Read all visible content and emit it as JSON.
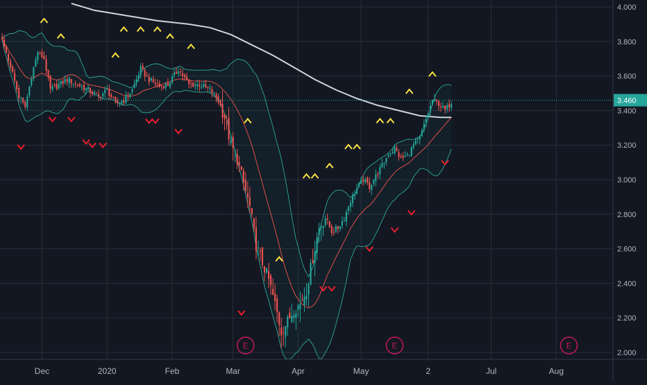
{
  "colors": {
    "background": "#131722",
    "grid": "#2a2e39",
    "axis_text": "#b2b5be",
    "candle_up": "#26a69a",
    "candle_down": "#ef5350",
    "ma20": "#e0504a",
    "bollinger": "#2a9d8f",
    "bollinger_fill": "rgba(38,166,154,0.06)",
    "ma200": "#d1d4dc",
    "signal_up": "#f7e142",
    "signal_down": "#e91e2b",
    "earnings": "#c2185b",
    "price_label_bg": "#26a69a",
    "price_line": "#26a69a"
  },
  "chart_data": {
    "type": "candlestick",
    "x_ticks": [
      {
        "label": "Dec",
        "day": 15
      },
      {
        "label": "2020",
        "day": 46
      },
      {
        "label": "Feb",
        "day": 77
      },
      {
        "label": "Mar",
        "day": 106
      },
      {
        "label": "Apr",
        "day": 137
      },
      {
        "label": "May",
        "day": 167
      },
      {
        "label": "2",
        "day": 199
      },
      {
        "label": "Jul",
        "day": 229
      },
      {
        "label": "Aug",
        "day": 260
      }
    ],
    "y_ticks": [
      "4.000",
      "3.800",
      "3.600",
      "3.400",
      "3.200",
      "3.000",
      "2.800",
      "2.600",
      "2.400",
      "2.200",
      "2.000"
    ],
    "ylim": [
      1.96,
      4.04
    ],
    "x_range_days": [
      -5,
      287
    ],
    "last_price": "3.460",
    "last_price_value": 3.46,
    "earnings_label": "E",
    "earnings_days": [
      112,
      183,
      266
    ],
    "anchors": [
      {
        "d": -4,
        "p": 3.8
      },
      {
        "d": 0,
        "p": 3.66
      },
      {
        "d": 4,
        "p": 3.48
      },
      {
        "d": 7,
        "p": 3.42
      },
      {
        "d": 10,
        "p": 3.6
      },
      {
        "d": 13,
        "p": 3.74
      },
      {
        "d": 16,
        "p": 3.7
      },
      {
        "d": 19,
        "p": 3.52
      },
      {
        "d": 23,
        "p": 3.55
      },
      {
        "d": 27,
        "p": 3.58
      },
      {
        "d": 32,
        "p": 3.55
      },
      {
        "d": 37,
        "p": 3.52
      },
      {
        "d": 42,
        "p": 3.48
      },
      {
        "d": 46,
        "p": 3.52
      },
      {
        "d": 50,
        "p": 3.44
      },
      {
        "d": 54,
        "p": 3.46
      },
      {
        "d": 58,
        "p": 3.52
      },
      {
        "d": 62,
        "p": 3.64
      },
      {
        "d": 66,
        "p": 3.58
      },
      {
        "d": 71,
        "p": 3.54
      },
      {
        "d": 75,
        "p": 3.55
      },
      {
        "d": 80,
        "p": 3.64
      },
      {
        "d": 85,
        "p": 3.55
      },
      {
        "d": 90,
        "p": 3.55
      },
      {
        "d": 95,
        "p": 3.52
      },
      {
        "d": 99,
        "p": 3.46
      },
      {
        "d": 102,
        "p": 3.36
      },
      {
        "d": 105,
        "p": 3.2
      },
      {
        "d": 108,
        "p": 3.12
      },
      {
        "d": 111,
        "p": 2.98
      },
      {
        "d": 114,
        "p": 2.84
      },
      {
        "d": 117,
        "p": 2.62
      },
      {
        "d": 120,
        "p": 2.52
      },
      {
        "d": 123,
        "p": 2.42
      },
      {
        "d": 126,
        "p": 2.28
      },
      {
        "d": 129,
        "p": 2.12
      },
      {
        "d": 132,
        "p": 2.18
      },
      {
        "d": 135,
        "p": 2.25
      },
      {
        "d": 138,
        "p": 2.28
      },
      {
        "d": 141,
        "p": 2.36
      },
      {
        "d": 144,
        "p": 2.55
      },
      {
        "d": 147,
        "p": 2.72
      },
      {
        "d": 150,
        "p": 2.78
      },
      {
        "d": 153,
        "p": 2.7
      },
      {
        "d": 156,
        "p": 2.72
      },
      {
        "d": 159,
        "p": 2.78
      },
      {
        "d": 162,
        "p": 2.88
      },
      {
        "d": 165,
        "p": 2.95
      },
      {
        "d": 168,
        "p": 3.0
      },
      {
        "d": 171,
        "p": 2.96
      },
      {
        "d": 174,
        "p": 3.02
      },
      {
        "d": 177,
        "p": 3.08
      },
      {
        "d": 180,
        "p": 3.15
      },
      {
        "d": 183,
        "p": 3.18
      },
      {
        "d": 186,
        "p": 3.12
      },
      {
        "d": 189,
        "p": 3.14
      },
      {
        "d": 192,
        "p": 3.2
      },
      {
        "d": 195,
        "p": 3.24
      },
      {
        "d": 198,
        "p": 3.35
      },
      {
        "d": 201,
        "p": 3.46
      },
      {
        "d": 204,
        "p": 3.44
      },
      {
        "d": 207,
        "p": 3.4
      },
      {
        "d": 210,
        "p": 3.45
      }
    ],
    "ma200": [
      {
        "d": 29,
        "p": 4.02
      },
      {
        "d": 40,
        "p": 3.98
      },
      {
        "d": 55,
        "p": 3.95
      },
      {
        "d": 70,
        "p": 3.92
      },
      {
        "d": 85,
        "p": 3.9
      },
      {
        "d": 95,
        "p": 3.88
      },
      {
        "d": 105,
        "p": 3.84
      },
      {
        "d": 115,
        "p": 3.78
      },
      {
        "d": 125,
        "p": 3.72
      },
      {
        "d": 135,
        "p": 3.65
      },
      {
        "d": 145,
        "p": 3.58
      },
      {
        "d": 155,
        "p": 3.52
      },
      {
        "d": 165,
        "p": 3.47
      },
      {
        "d": 175,
        "p": 3.43
      },
      {
        "d": 185,
        "p": 3.4
      },
      {
        "d": 195,
        "p": 3.37
      },
      {
        "d": 205,
        "p": 3.36
      },
      {
        "d": 210,
        "p": 3.36
      }
    ],
    "signals_up": [
      {
        "d": 16,
        "p": 3.92
      },
      {
        "d": 24,
        "p": 3.83
      },
      {
        "d": 50,
        "p": 3.72
      },
      {
        "d": 54,
        "p": 3.87
      },
      {
        "d": 62,
        "p": 3.87
      },
      {
        "d": 70,
        "p": 3.87
      },
      {
        "d": 76,
        "p": 3.83
      },
      {
        "d": 86,
        "p": 3.77
      },
      {
        "d": 113,
        "p": 3.34
      },
      {
        "d": 128,
        "p": 2.54
      },
      {
        "d": 141,
        "p": 3.02
      },
      {
        "d": 145,
        "p": 3.02
      },
      {
        "d": 152,
        "p": 3.08
      },
      {
        "d": 161,
        "p": 3.19
      },
      {
        "d": 165,
        "p": 3.19
      },
      {
        "d": 176,
        "p": 3.34
      },
      {
        "d": 181,
        "p": 3.34
      },
      {
        "d": 190,
        "p": 3.51
      },
      {
        "d": 201,
        "p": 3.61
      }
    ],
    "signals_down": [
      {
        "d": 5,
        "p": 3.19
      },
      {
        "d": 20,
        "p": 3.35
      },
      {
        "d": 29,
        "p": 3.35
      },
      {
        "d": 36,
        "p": 3.22
      },
      {
        "d": 39,
        "p": 3.2
      },
      {
        "d": 44,
        "p": 3.2
      },
      {
        "d": 66,
        "p": 3.34
      },
      {
        "d": 69,
        "p": 3.34
      },
      {
        "d": 80,
        "p": 3.28
      },
      {
        "d": 110,
        "p": 2.23
      },
      {
        "d": 149,
        "p": 2.37
      },
      {
        "d": 153,
        "p": 2.37
      },
      {
        "d": 171,
        "p": 2.6
      },
      {
        "d": 183,
        "p": 2.71
      },
      {
        "d": 191,
        "p": 2.81
      },
      {
        "d": 207,
        "p": 3.1
      }
    ]
  }
}
